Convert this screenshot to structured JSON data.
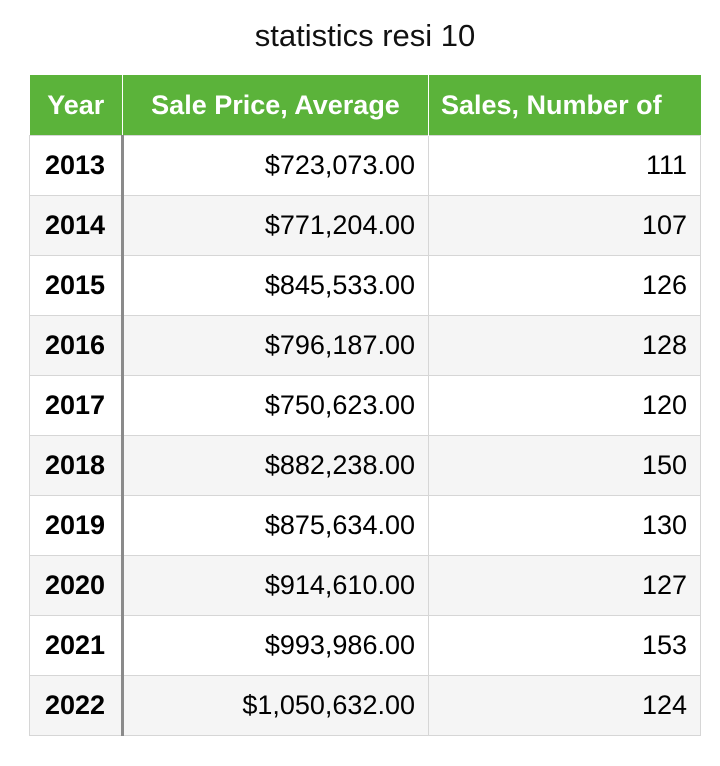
{
  "chart_data": {
    "type": "table",
    "title": "statistics resi 10",
    "columns": [
      "Year",
      "Sale Price, Average",
      "Sales, Number of"
    ],
    "rows": [
      {
        "year": "2013",
        "price": "$723,073.00",
        "sales": "111"
      },
      {
        "year": "2014",
        "price": "$771,204.00",
        "sales": "107"
      },
      {
        "year": "2015",
        "price": "$845,533.00",
        "sales": "126"
      },
      {
        "year": "2016",
        "price": "$796,187.00",
        "sales": "128"
      },
      {
        "year": "2017",
        "price": "$750,623.00",
        "sales": "120"
      },
      {
        "year": "2018",
        "price": "$882,238.00",
        "sales": "150"
      },
      {
        "year": "2019",
        "price": "$875,634.00",
        "sales": "130"
      },
      {
        "year": "2020",
        "price": "$914,610.00",
        "sales": "127"
      },
      {
        "year": "2021",
        "price": "$993,986.00",
        "sales": "153"
      },
      {
        "year": "2022",
        "price": "$1,050,632.00",
        "sales": "124"
      }
    ],
    "colors": {
      "header_background": "#5bb33a",
      "header_text": "#ffffff",
      "alt_row_background": "#f5f5f5"
    }
  }
}
